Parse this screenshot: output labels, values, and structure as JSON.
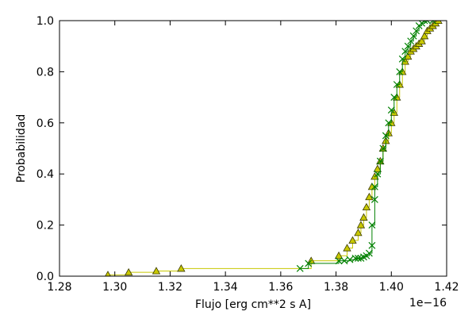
{
  "chart_data": {
    "type": "line",
    "xlabel": "Flujo [erg cm**2 s A]",
    "ylabel": "Probabilidad",
    "x_offset_label": "1e−16",
    "xlim": [
      1.28,
      1.42
    ],
    "ylim": [
      0.0,
      1.0
    ],
    "xticks": [
      "1.28",
      "1.30",
      "1.32",
      "1.34",
      "1.36",
      "1.38",
      "1.40",
      "1.42"
    ],
    "yticks": [
      "0.0",
      "0.2",
      "0.4",
      "0.6",
      "0.8",
      "1.0"
    ],
    "grid": false,
    "series": [
      {
        "marker": "x",
        "color": "#008000",
        "x": [
          1.367,
          1.37,
          1.381,
          1.383,
          1.385,
          1.387,
          1.388,
          1.389,
          1.39,
          1.391,
          1.392,
          1.393,
          1.393,
          1.394,
          1.394,
          1.395,
          1.396,
          1.397,
          1.398,
          1.399,
          1.4,
          1.401,
          1.402,
          1.403,
          1.404,
          1.405,
          1.406,
          1.407,
          1.408,
          1.409,
          1.41,
          1.411,
          1.412,
          1.413,
          1.415
        ],
        "y": [
          0.03,
          0.05,
          0.06,
          0.06,
          0.065,
          0.07,
          0.07,
          0.07,
          0.075,
          0.08,
          0.09,
          0.12,
          0.2,
          0.3,
          0.35,
          0.4,
          0.45,
          0.5,
          0.55,
          0.6,
          0.65,
          0.7,
          0.75,
          0.8,
          0.85,
          0.88,
          0.9,
          0.92,
          0.94,
          0.96,
          0.98,
          0.99,
          1.0,
          1.0,
          1.0
        ]
      },
      {
        "marker": "^",
        "color": "#c8c800",
        "x": [
          1.2975,
          1.305,
          1.315,
          1.324,
          1.371,
          1.381,
          1.384,
          1.386,
          1.388,
          1.389,
          1.39,
          1.391,
          1.392,
          1.393,
          1.394,
          1.395,
          1.396,
          1.397,
          1.398,
          1.399,
          1.4,
          1.401,
          1.402,
          1.403,
          1.404,
          1.405,
          1.406,
          1.407,
          1.408,
          1.409,
          1.41,
          1.411,
          1.412,
          1.413,
          1.414,
          1.415,
          1.416,
          1.417
        ],
        "y": [
          0.005,
          0.015,
          0.02,
          0.03,
          0.06,
          0.08,
          0.11,
          0.14,
          0.17,
          0.2,
          0.23,
          0.27,
          0.31,
          0.35,
          0.39,
          0.42,
          0.45,
          0.5,
          0.53,
          0.56,
          0.6,
          0.64,
          0.7,
          0.75,
          0.8,
          0.84,
          0.86,
          0.88,
          0.89,
          0.9,
          0.91,
          0.92,
          0.94,
          0.96,
          0.97,
          0.98,
          0.99,
          1.0
        ]
      }
    ]
  }
}
